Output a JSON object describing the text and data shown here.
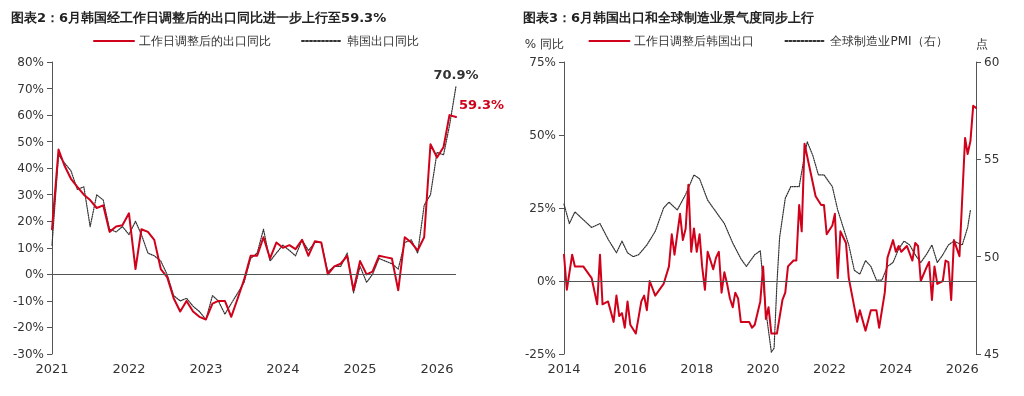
{
  "chart_data": [
    {
      "type": "line",
      "title": "图表2：6月韩国经工作日调整后的出口同比进一步上行至59.3%",
      "legend": "top",
      "ylim": [
        -30,
        80
      ],
      "yticks": [
        {
          "value": -30,
          "label": "-30%"
        },
        {
          "value": -20,
          "label": "-20%"
        },
        {
          "value": -10,
          "label": "-10%"
        },
        {
          "value": 0,
          "label": "0%"
        },
        {
          "value": 10,
          "label": "10%"
        },
        {
          "value": 20,
          "label": "20%"
        },
        {
          "value": 30,
          "label": "30%"
        },
        {
          "value": 40,
          "label": "40%"
        },
        {
          "value": 50,
          "label": "50%"
        },
        {
          "value": 60,
          "label": "60%"
        },
        {
          "value": 70,
          "label": "70%"
        },
        {
          "value": 80,
          "label": "80%"
        }
      ],
      "xlim": [
        "2021-01",
        "2026-04"
      ],
      "xticks": [
        "2021",
        "2022",
        "2023",
        "2024",
        "2025",
        "2026"
      ],
      "ref_lines": [
        {
          "axis": "y",
          "value": 0
        }
      ],
      "x": [
        "2021-01",
        "2021-02",
        "2021-03",
        "2021-04",
        "2021-05",
        "2021-06",
        "2021-07",
        "2021-08",
        "2021-09",
        "2021-10",
        "2021-11",
        "2021-12",
        "2022-01",
        "2022-02",
        "2022-03",
        "2022-04",
        "2022-05",
        "2022-06",
        "2022-07",
        "2022-08",
        "2022-09",
        "2022-10",
        "2022-11",
        "2022-12",
        "2023-01",
        "2023-02",
        "2023-03",
        "2023-04",
        "2023-05",
        "2023-06",
        "2023-07",
        "2023-08",
        "2023-09",
        "2023-10",
        "2023-11",
        "2023-12",
        "2024-01",
        "2024-02",
        "2024-03",
        "2024-04",
        "2024-05",
        "2024-06",
        "2024-07",
        "2024-08",
        "2024-09",
        "2024-10",
        "2024-11",
        "2024-12",
        "2025-01",
        "2025-02",
        "2025-03",
        "2025-04",
        "2025-05",
        "2025-06",
        "2025-07",
        "2025-08",
        "2025-09",
        "2025-10",
        "2025-11",
        "2025-12",
        "2026-01",
        "2026-02",
        "2026-03",
        "2026-04"
      ],
      "series": [
        {
          "name": "工作日调整后的出口同比",
          "color": "#d0021b",
          "line_style": "solid",
          "values": [
            17,
            47,
            41,
            36,
            33,
            30,
            28,
            25,
            26,
            16,
            18,
            18.5,
            23,
            2,
            17,
            16,
            13,
            2,
            -1,
            -9,
            -14,
            -10,
            -14,
            -16,
            -17,
            -11,
            -10,
            -10,
            -16,
            -9,
            -2,
            7,
            7,
            14,
            6,
            12,
            10,
            11,
            9.5,
            13,
            7,
            12.5,
            12,
            0,
            3,
            4,
            7,
            -6,
            5,
            0,
            1,
            7,
            6.5,
            6,
            -6,
            14,
            12,
            9,
            14,
            49,
            44,
            48,
            60,
            59.3
          ],
          "value_labels": [
            null,
            null,
            null,
            null,
            null,
            null,
            null,
            null,
            null,
            null,
            null,
            null,
            null,
            null,
            null,
            null,
            null,
            null,
            null,
            null,
            null,
            null,
            null,
            null,
            null,
            null,
            null,
            null,
            null,
            null,
            null,
            null,
            null,
            null,
            null,
            null,
            null,
            null,
            null,
            null,
            null,
            null,
            null,
            null,
            null,
            null,
            null,
            null,
            null,
            null,
            null,
            null,
            null,
            null,
            null,
            null,
            null,
            null,
            null,
            null,
            null,
            null,
            null,
            "59.3%"
          ]
        },
        {
          "name": "韩国出口同比",
          "color": "#333333",
          "line_style": "dotted",
          "values": [
            11,
            45,
            42,
            39,
            32,
            33,
            18,
            30,
            28,
            17,
            16,
            18,
            15,
            20,
            15,
            8,
            7,
            5,
            0,
            -8,
            -10,
            -9,
            -12,
            -14,
            -17,
            -8,
            -10,
            -15,
            -11,
            -7,
            -3,
            6,
            8,
            17,
            5,
            8,
            11,
            9,
            7,
            13,
            9,
            12,
            12,
            1,
            3,
            3,
            8,
            -7,
            3,
            -3,
            0,
            6,
            5,
            4,
            2,
            12,
            13,
            8,
            26,
            30,
            46,
            45,
            56,
            70.9
          ],
          "value_labels": [
            null,
            null,
            null,
            null,
            null,
            null,
            null,
            null,
            null,
            null,
            null,
            null,
            null,
            null,
            null,
            null,
            null,
            null,
            null,
            null,
            null,
            null,
            null,
            null,
            null,
            null,
            null,
            null,
            null,
            null,
            null,
            null,
            null,
            null,
            null,
            null,
            null,
            null,
            null,
            null,
            null,
            null,
            null,
            null,
            null,
            null,
            null,
            null,
            null,
            null,
            null,
            null,
            null,
            null,
            null,
            null,
            null,
            null,
            null,
            null,
            null,
            null,
            null,
            "70.9%"
          ]
        }
      ]
    },
    {
      "type": "line",
      "title": "图表3：6月韩国出口和全球制造业景气度同步上行",
      "legend": "top",
      "ylabel": "% 同比",
      "y2label": "点",
      "ylim": [
        -25,
        75
      ],
      "yticks": [
        {
          "value": -25,
          "label": "-25%"
        },
        {
          "value": 0,
          "label": "0%"
        },
        {
          "value": 25,
          "label": "25%"
        },
        {
          "value": 50,
          "label": "50%"
        },
        {
          "value": 75,
          "label": "75%"
        }
      ],
      "y2lim": [
        45,
        60
      ],
      "y2ticks": [
        45,
        50,
        55,
        60
      ],
      "xlim": [
        "2014-01",
        "2026-06"
      ],
      "xticks": [
        "2014",
        "2016",
        "2018",
        "2020",
        "2022",
        "2024",
        "2026"
      ],
      "ref_lines": [
        {
          "axis": "y",
          "value": 0
        }
      ],
      "series": [
        {
          "name": "工作日调整后韩国出口",
          "color": "#d0021b",
          "line_style": "solid",
          "x": [
            "2014-01",
            "2014-02",
            "2014-04",
            "2014-05",
            "2014-08",
            "2014-11",
            "2015-01",
            "2015-02",
            "2015-03",
            "2015-05",
            "2015-07",
            "2015-08",
            "2015-09",
            "2015-10",
            "2015-11",
            "2015-12",
            "2016-01",
            "2016-03",
            "2016-05",
            "2016-06",
            "2016-07",
            "2016-08",
            "2016-10",
            "2017-01",
            "2017-03",
            "2017-04",
            "2017-05",
            "2017-07",
            "2017-08",
            "2017-09",
            "2017-10",
            "2017-11",
            "2017-12",
            "2018-01",
            "2018-02",
            "2018-03",
            "2018-04",
            "2018-05",
            "2018-06",
            "2018-07",
            "2018-08",
            "2018-09",
            "2018-10",
            "2018-11",
            "2018-12",
            "2019-01",
            "2019-02",
            "2019-03",
            "2019-04",
            "2019-05",
            "2019-06",
            "2019-08",
            "2019-09",
            "2019-10",
            "2019-12",
            "2020-01",
            "2020-02",
            "2020-03",
            "2020-04",
            "2020-06",
            "2020-08",
            "2020-09",
            "2020-10",
            "2020-12",
            "2021-01",
            "2021-02",
            "2021-03",
            "2021-04",
            "2021-06",
            "2021-08",
            "2021-10",
            "2021-11",
            "2021-12",
            "2022-02",
            "2022-03",
            "2022-04",
            "2022-05",
            "2022-07",
            "2022-08",
            "2022-11",
            "2022-12",
            "2023-02",
            "2023-04",
            "2023-06",
            "2023-07",
            "2023-09",
            "2023-10",
            "2023-12",
            "2024-01",
            "2024-02",
            "2024-03",
            "2024-05",
            "2024-07",
            "2024-08",
            "2024-09",
            "2024-10",
            "2024-12",
            "2025-01",
            "2025-02",
            "2025-03",
            "2025-04",
            "2025-06",
            "2025-07",
            "2025-08",
            "2025-09",
            "2025-10",
            "2025-12",
            "2026-02",
            "2026-03",
            "2026-04",
            "2026-05",
            "2026-06"
          ],
          "values": [
            9,
            -3,
            9,
            5,
            5,
            1,
            -8,
            9,
            -8,
            -7,
            -14,
            -5,
            -12,
            -11,
            -16,
            -7,
            -15,
            -18,
            -7,
            -5,
            -10,
            0,
            -5,
            -1,
            5,
            16,
            9,
            23,
            14,
            18,
            33,
            10,
            18,
            10,
            16,
            5,
            -3,
            10,
            7,
            4,
            8,
            10,
            -4,
            3,
            -1,
            -6,
            -9,
            -4,
            -6,
            -14,
            -14,
            -14,
            -16,
            -15,
            -7,
            5,
            -13,
            -9,
            -18,
            -18,
            -6.5,
            -4,
            5,
            7,
            7,
            26,
            17,
            47,
            38,
            29,
            26,
            26,
            16,
            19,
            23,
            1,
            17,
            13,
            1,
            -14,
            -10,
            -17,
            -10,
            -10,
            -16,
            -4,
            8,
            14,
            10,
            12,
            10,
            12,
            7,
            13,
            12,
            0,
            4.5,
            6.5,
            -6.5,
            5,
            -1,
            0,
            7,
            6.5,
            -6.5,
            14,
            8.5,
            49,
            43.5,
            48,
            60,
            59.3
          ]
        },
        {
          "name": "全球制造业PMI（右）",
          "color": "#333333",
          "line_style": "dotted",
          "axis": "y2",
          "x": [
            "2014-01",
            "2014-03",
            "2014-05",
            "2014-08",
            "2014-11",
            "2015-02",
            "2015-05",
            "2015-08",
            "2015-10",
            "2015-12",
            "2016-02",
            "2016-04",
            "2016-07",
            "2016-10",
            "2017-01",
            "2017-03",
            "2017-06",
            "2017-09",
            "2017-12",
            "2018-02",
            "2018-05",
            "2018-08",
            "2018-11",
            "2019-02",
            "2019-05",
            "2019-07",
            "2019-10",
            "2019-12",
            "2020-02",
            "2020-04",
            "2020-05",
            "2020-06",
            "2020-07",
            "2020-09",
            "2020-11",
            "2021-02",
            "2021-04",
            "2021-05",
            "2021-07",
            "2021-09",
            "2021-11",
            "2022-02",
            "2022-04",
            "2022-06",
            "2022-08",
            "2022-10",
            "2022-12",
            "2023-02",
            "2023-04",
            "2023-06",
            "2023-08",
            "2023-10",
            "2023-12",
            "2024-02",
            "2024-04",
            "2024-06",
            "2024-08",
            "2024-10",
            "2024-12",
            "2025-02",
            "2025-04",
            "2025-06",
            "2025-08",
            "2025-10",
            "2026-01",
            "2026-03",
            "2026-04"
          ],
          "values": [
            52.7,
            51.7,
            52.3,
            51.9,
            51.5,
            51.7,
            50.9,
            50.2,
            50.8,
            50.2,
            50.0,
            50.1,
            50.6,
            51.3,
            52.5,
            52.8,
            52.4,
            53.2,
            54.2,
            54.0,
            52.9,
            52.3,
            51.7,
            50.7,
            49.9,
            49.5,
            50.1,
            50.3,
            47.2,
            45.1,
            45.3,
            48.6,
            51.0,
            53.0,
            53.6,
            53.6,
            55.2,
            55.9,
            55.2,
            54.2,
            54.2,
            53.6,
            52.4,
            51.5,
            50.6,
            49.3,
            49.1,
            49.8,
            49.5,
            48.8,
            48.8,
            49.5,
            49.7,
            50.4,
            50.8,
            50.6,
            50.1,
            49.7,
            50.1,
            50.6,
            49.7,
            50.1,
            50.6,
            50.8,
            50.6,
            51.5,
            52.4
          ]
        }
      ]
    }
  ]
}
